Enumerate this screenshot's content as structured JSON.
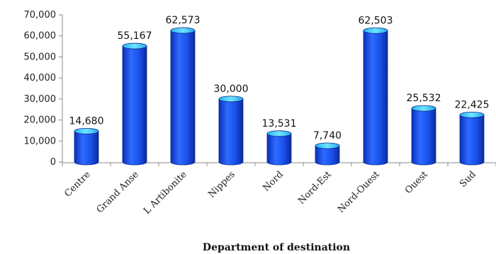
{
  "chart_data": {
    "type": "bar",
    "categories": [
      "Centre",
      "Grand Anse",
      "L Artibonite",
      "Nippes",
      "Nord",
      "Nord-Est",
      "Nord-Ouest",
      "Ouest",
      "Sud"
    ],
    "values": [
      14680,
      55167,
      62573,
      30000,
      13531,
      7740,
      62503,
      25532,
      22425
    ],
    "data_labels": [
      "14,680",
      "55,167",
      "62,573",
      "30,000",
      "13,531",
      "7,740",
      "62,503",
      "25,532",
      "22,425"
    ],
    "xlabel": "Department of destination",
    "ylabel": "",
    "ylim": [
      0,
      70000
    ],
    "y_ticks": [
      0,
      10000,
      20000,
      30000,
      40000,
      50000,
      60000,
      70000
    ],
    "y_tick_labels": [
      "0",
      "10,000",
      "20,000",
      "30,000",
      "40,000",
      "50,000",
      "60,000",
      "70,000"
    ],
    "bar_style": "cylinder",
    "bar_color": "#1f4fe0",
    "bar_top_color": "#3fd0ff",
    "grid": false,
    "legend": "none"
  }
}
